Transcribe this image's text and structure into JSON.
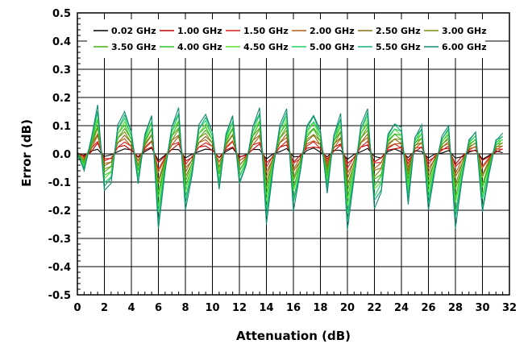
{
  "chart_data": {
    "type": "line",
    "title": "",
    "xlabel": "Attenuation (dB)",
    "ylabel": "Error (dB)",
    "xlim": [
      0,
      32
    ],
    "ylim": [
      -0.5,
      0.5
    ],
    "x_ticks": [
      0,
      2,
      4,
      6,
      8,
      10,
      12,
      14,
      16,
      18,
      20,
      22,
      24,
      26,
      28,
      30,
      32
    ],
    "x_tick_labels": [
      "0",
      "2",
      "4",
      "6",
      "8",
      "10",
      "12",
      "14",
      "16",
      "18",
      "20",
      "22",
      "24",
      "26",
      "28",
      "30",
      "32"
    ],
    "y_ticks": [
      -0.5,
      -0.4,
      -0.3,
      -0.2,
      -0.1,
      0.0,
      0.1,
      0.2,
      0.3,
      0.4,
      0.5
    ],
    "y_tick_labels": [
      "-0.5",
      "-0.4",
      "-0.3",
      "-0.2",
      "-0.1",
      "0.0",
      "0.1",
      "0.2",
      "0.3",
      "0.4",
      "0.5"
    ],
    "grid": true,
    "legend_position": "top",
    "x": [
      0,
      0.5,
      1,
      1.5,
      2,
      2.5,
      3,
      3.5,
      4,
      4.5,
      5,
      5.5,
      6,
      6.5,
      7,
      7.5,
      8,
      8.5,
      9,
      9.5,
      10,
      10.5,
      11,
      11.5,
      12,
      12.5,
      13,
      13.5,
      14,
      14.5,
      15,
      15.5,
      16,
      16.5,
      17,
      17.5,
      18,
      18.5,
      19,
      19.5,
      20,
      20.5,
      21,
      21.5,
      22,
      22.5,
      23,
      23.5,
      24,
      24.5,
      25,
      25.5,
      26,
      26.5,
      27,
      27.5,
      28,
      28.5,
      29,
      29.5,
      30,
      30.5,
      31,
      31.5
    ],
    "envelope_6ghz": [
      0,
      -0.06,
      0.05,
      0.17,
      -0.13,
      -0.1,
      0.1,
      0.15,
      0.08,
      -0.11,
      0.07,
      0.14,
      -0.27,
      -0.06,
      0.1,
      0.16,
      -0.2,
      -0.07,
      0.1,
      0.14,
      0.08,
      -0.13,
      0.07,
      0.14,
      -0.11,
      -0.04,
      0.1,
      0.16,
      -0.25,
      -0.05,
      0.1,
      0.16,
      -0.2,
      -0.07,
      0.1,
      0.14,
      0.08,
      -0.14,
      0.07,
      0.14,
      -0.27,
      -0.08,
      0.1,
      0.16,
      -0.19,
      -0.14,
      0.07,
      0.11,
      0.09,
      -0.18,
      0.06,
      0.1,
      -0.2,
      -0.05,
      0.06,
      0.1,
      -0.26,
      -0.09,
      0.05,
      0.08,
      -0.21,
      -0.07,
      0.05,
      0.07
    ],
    "series": [
      {
        "name": "0.02 GHz",
        "color": "#000000"
      },
      {
        "name": "1.00 GHz",
        "color": "#c00000"
      },
      {
        "name": "1.50 GHz",
        "color": "#d81818"
      },
      {
        "name": "2.00 GHz",
        "color": "#b85a10"
      },
      {
        "name": "2.50 GHz",
        "color": "#8a6a10"
      },
      {
        "name": "3.00 GHz",
        "color": "#7a8a10"
      },
      {
        "name": "3.50 GHz",
        "color": "#44b014"
      },
      {
        "name": "4.00 GHz",
        "color": "#2cc020"
      },
      {
        "name": "4.50 GHz",
        "color": "#58e030"
      },
      {
        "name": "5.00 GHz",
        "color": "#20d060"
      },
      {
        "name": "5.50 GHz",
        "color": "#14b070"
      },
      {
        "name": "6.00 GHz",
        "color": "#108a70"
      }
    ]
  }
}
